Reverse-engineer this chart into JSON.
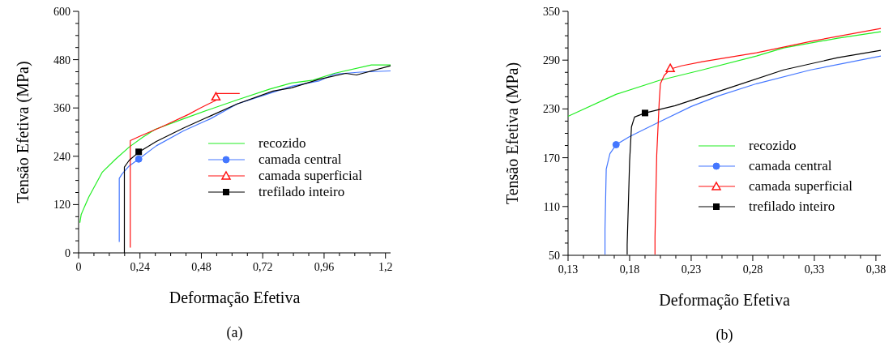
{
  "chart_data": [
    {
      "type": "line",
      "xlabel": "Deformação Efetiva",
      "ylabel": "Tensão Efetiva (MPa)",
      "annotations": [
        "(a)"
      ],
      "legend": "bottom right",
      "grid": false,
      "xlim": [
        0,
        1.22
      ],
      "ylim": [
        0,
        600
      ],
      "xticks": [
        0,
        {
          "value": 0.06,
          "label": null
        },
        {
          "value": 0.12,
          "label": null
        },
        {
          "value": 0.18,
          "label": null
        },
        {
          "value": 0.24,
          "label": "0,24"
        },
        {
          "value": 0.3,
          "label": null
        },
        {
          "value": 0.36,
          "label": null
        },
        {
          "value": 0.42,
          "label": null
        },
        {
          "value": 0.48,
          "label": "0,48"
        },
        {
          "value": 0.54,
          "label": null
        },
        {
          "value": 0.6,
          "label": null
        },
        {
          "value": 0.66,
          "label": null
        },
        {
          "value": 0.72,
          "label": "0,72"
        },
        {
          "value": 0.78,
          "label": null
        },
        {
          "value": 0.84,
          "label": null
        },
        {
          "value": 0.9,
          "label": null
        },
        {
          "value": 0.96,
          "label": "0,96"
        },
        {
          "value": 1.02,
          "label": null
        },
        {
          "value": 1.08,
          "label": null
        },
        {
          "value": 1.14,
          "label": null
        },
        {
          "value": 1.2,
          "label": "1,2"
        }
      ],
      "yticks": [
        0,
        {
          "value": 30,
          "label": null
        },
        {
          "value": 60,
          "label": null
        },
        {
          "value": 90,
          "label": null
        },
        120,
        {
          "value": 150,
          "label": null
        },
        {
          "value": 180,
          "label": null
        },
        {
          "value": 210,
          "label": null
        },
        240,
        {
          "value": 270,
          "label": null
        },
        {
          "value": 300,
          "label": null
        },
        {
          "value": 330,
          "label": null
        },
        360,
        {
          "value": 390,
          "label": null
        },
        {
          "value": 420,
          "label": null
        },
        {
          "value": 450,
          "label": null
        },
        480,
        {
          "value": 510,
          "label": null
        },
        {
          "value": 540,
          "label": null
        },
        {
          "value": 570,
          "label": null
        },
        600
      ],
      "series": [
        {
          "name": "recozido",
          "color": "#22ee22",
          "x": [
            0.005,
            0.01,
            0.02,
            0.04,
            0.092,
            0.145,
            0.198,
            0.25,
            0.3,
            0.41,
            0.515,
            0.62,
            0.748,
            0.833,
            0.917,
            1.0,
            1.145,
            1.22
          ],
          "values": [
            75,
            95,
            110,
            139,
            200,
            233,
            263,
            287,
            307,
            333,
            357,
            380,
            407,
            422,
            429,
            446,
            467,
            467
          ]
        },
        {
          "name": "camada central",
          "color": "#4477ff",
          "x": [
            0.159,
            0.159,
            0.17,
            0.198,
            0.235,
            0.304,
            0.41,
            0.515,
            0.62,
            0.76,
            0.833,
            0.94,
            1.0,
            1.1,
            1.22
          ],
          "values": [
            27,
            185,
            196,
            216,
            233,
            266,
            303,
            333,
            370,
            399,
            414,
            427,
            444,
            449,
            452
          ]
        },
        {
          "name": "camada superficial",
          "color": "#ff1111",
          "x": [
            0.202,
            0.202,
            0.24,
            0.325,
            0.43,
            0.473,
            0.537,
            0.537,
            0.63
          ],
          "values": [
            13,
            279,
            290,
            313,
            344,
            359,
            379,
            396,
            396
          ]
        },
        {
          "name": "trefilado inteiro",
          "color": "#000000",
          "x": [
            0.179,
            0.179,
            0.19,
            0.198,
            0.235,
            0.304,
            0.41,
            0.515,
            0.62,
            0.76,
            0.833,
            0.94,
            1.045,
            1.087,
            1.22
          ],
          "values": [
            0,
            213,
            223,
            230,
            250,
            277,
            310,
            340,
            370,
            402,
            410,
            431,
            446,
            442,
            465
          ]
        },
        {
          "type": "scatter",
          "color": "#4477ff",
          "marker": "circle",
          "x": [
            0.235
          ],
          "values": [
            233
          ]
        },
        {
          "type": "scatter",
          "color": "#ff1111",
          "marker": "triangle",
          "x": [
            0.537
          ],
          "values": [
            388
          ]
        },
        {
          "type": "scatter",
          "color": "#000000",
          "marker": "square",
          "x": [
            0.235
          ],
          "values": [
            251
          ]
        }
      ]
    },
    {
      "type": "line",
      "xlabel": "Deformação Efetiva",
      "ylabel": "Tensão Efetiva (MPa)",
      "annotations": [
        "(b)"
      ],
      "legend": "bottom right",
      "grid": false,
      "xlim": [
        0.13,
        0.384
      ],
      "ylim": [
        50,
        350
      ],
      "xticks": [
        {
          "value": 0.13,
          "label": "0,13"
        },
        {
          "value": 0.1425,
          "label": null
        },
        {
          "value": 0.155,
          "label": null
        },
        {
          "value": 0.1675,
          "label": null
        },
        {
          "value": 0.18,
          "label": "0,18"
        },
        {
          "value": 0.1925,
          "label": null
        },
        {
          "value": 0.205,
          "label": null
        },
        {
          "value": 0.2175,
          "label": null
        },
        {
          "value": 0.23,
          "label": "0,23"
        },
        {
          "value": 0.2425,
          "label": null
        },
        {
          "value": 0.255,
          "label": null
        },
        {
          "value": 0.2675,
          "label": null
        },
        {
          "value": 0.28,
          "label": "0,28"
        },
        {
          "value": 0.2925,
          "label": null
        },
        {
          "value": 0.305,
          "label": null
        },
        {
          "value": 0.3175,
          "label": null
        },
        {
          "value": 0.33,
          "label": "0,33"
        },
        {
          "value": 0.3425,
          "label": null
        },
        {
          "value": 0.355,
          "label": null
        },
        {
          "value": 0.3675,
          "label": null
        },
        {
          "value": 0.38,
          "label": "0,38"
        }
      ],
      "yticks": [
        50,
        {
          "value": 65,
          "label": null
        },
        {
          "value": 80,
          "label": null
        },
        {
          "value": 95,
          "label": null
        },
        110,
        {
          "value": 125,
          "label": null
        },
        {
          "value": 140,
          "label": null
        },
        {
          "value": 155,
          "label": null
        },
        170,
        {
          "value": 185,
          "label": null
        },
        {
          "value": 200,
          "label": null
        },
        {
          "value": 215,
          "label": null
        },
        230,
        {
          "value": 245,
          "label": null
        },
        {
          "value": 260,
          "label": null
        },
        {
          "value": 275,
          "label": null
        },
        290,
        {
          "value": 305,
          "label": null
        },
        {
          "value": 320,
          "label": null
        },
        {
          "value": 335,
          "label": null
        },
        350
      ],
      "series": [
        {
          "name": "recozido",
          "color": "#22ee22",
          "x": [
            0.13,
            0.169,
            0.204,
            0.239,
            0.283,
            0.305,
            0.349,
            0.384
          ],
          "values": [
            221,
            248,
            265,
            278,
            295,
            305,
            317,
            325
          ]
        },
        {
          "name": "camada central",
          "color": "#4477ff",
          "x": [
            0.16,
            0.16,
            0.161,
            0.164,
            0.169,
            0.18,
            0.204,
            0.23,
            0.252,
            0.283,
            0.327,
            0.384
          ],
          "values": [
            51,
            82,
            156,
            175,
            186,
            196,
            214,
            233,
            246,
            261,
            278,
            295
          ]
        },
        {
          "name": "camada superficial",
          "color": "#ff1111",
          "x": [
            0.2006,
            0.2006,
            0.202,
            0.204,
            0.205,
            0.208,
            0.213,
            0.222,
            0.239,
            0.283,
            0.327,
            0.384
          ],
          "values": [
            51,
            72,
            173,
            238,
            261,
            271,
            279,
            283,
            288,
            299,
            313,
            329
          ]
        },
        {
          "name": "trefilado inteiro",
          "color": "#000000",
          "x": [
            0.178,
            0.178,
            0.18,
            0.1815,
            0.184,
            0.1925,
            0.217,
            0.261,
            0.305,
            0.349,
            0.384
          ],
          "values": [
            51,
            63,
            166,
            208,
            220,
            225,
            234,
            256,
            278,
            293,
            302
          ]
        },
        {
          "type": "scatter",
          "color": "#4477ff",
          "marker": "circle",
          "x": [
            0.169
          ],
          "values": [
            186
          ]
        },
        {
          "type": "scatter",
          "color": "#ff1111",
          "marker": "triangle",
          "x": [
            0.213
          ],
          "values": [
            280
          ]
        },
        {
          "type": "scatter",
          "color": "#000000",
          "marker": "square",
          "x": [
            0.1925
          ],
          "values": [
            225
          ]
        }
      ]
    }
  ]
}
